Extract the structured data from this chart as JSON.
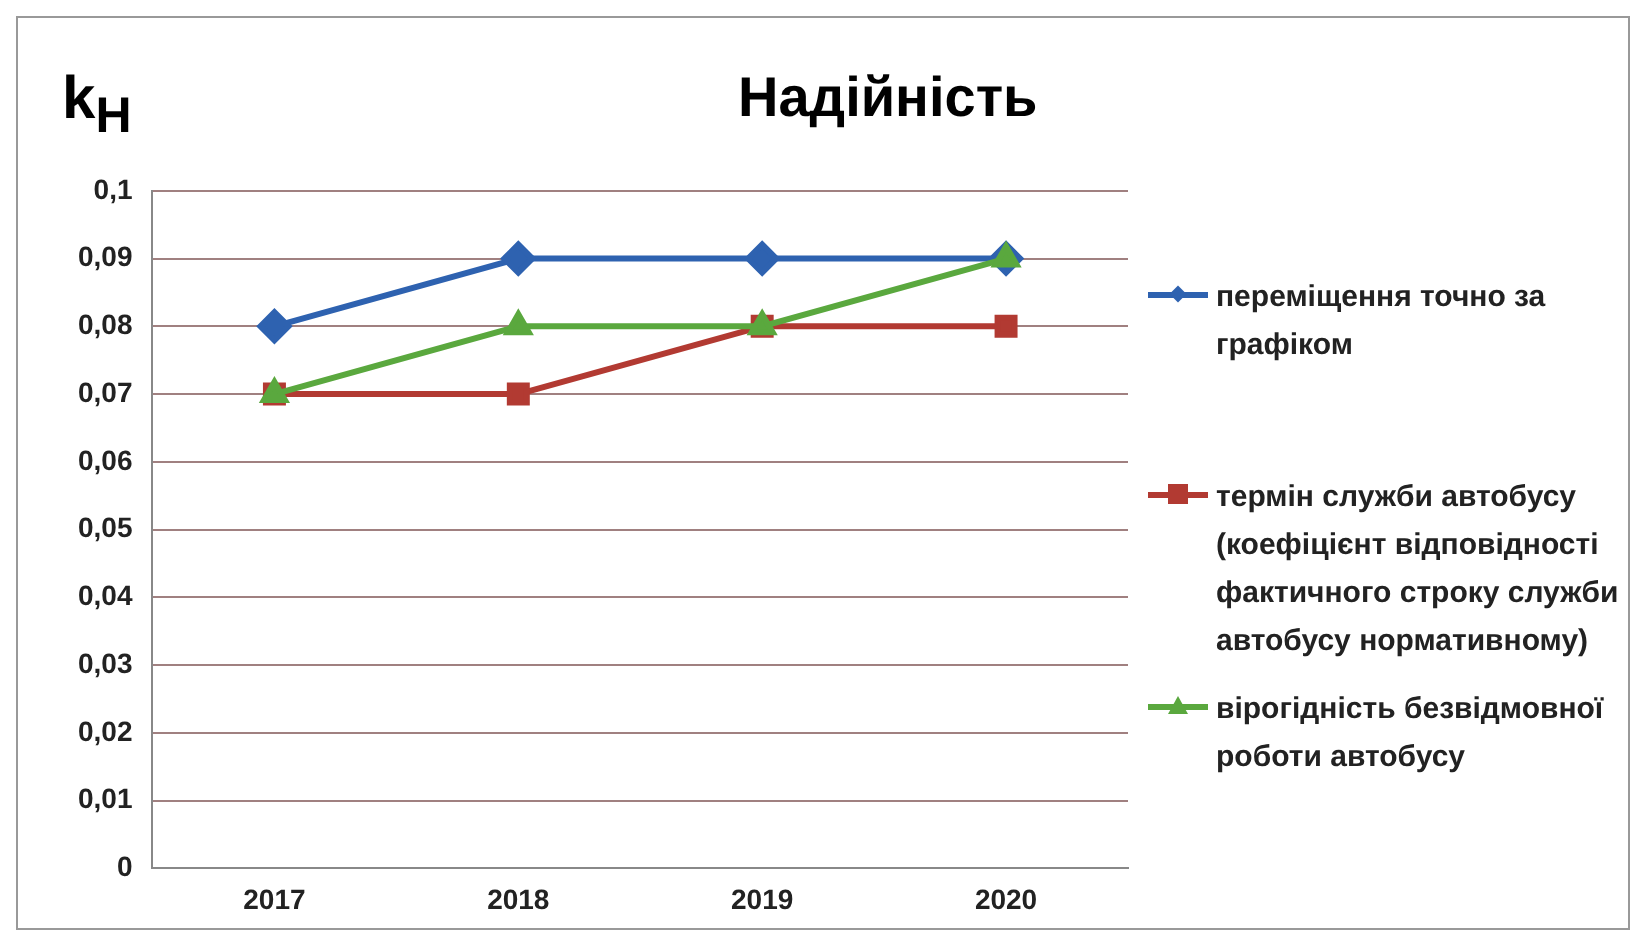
{
  "chart_data": {
    "type": "line",
    "title": "Надійність",
    "ylabel": "k$_{Н}$",
    "categories": [
      "2017",
      "2018",
      "2019",
      "2020"
    ],
    "series": [
      {
        "name": "переміщення точно за графіком",
        "color": "#2e62b0",
        "values": [
          0.08,
          0.09,
          0.09,
          0.09
        ],
        "marker": "diamond"
      },
      {
        "name": "термін служби автобусу (коефіцієнт відповідності фактичного строку служби автобусу нормативному)",
        "color": "#b23a32",
        "values": [
          0.07,
          0.07,
          0.08,
          0.08
        ],
        "marker": "square"
      },
      {
        "name": "вірогідність безвідмовної роботи автобусу",
        "color": "#5aa83e",
        "values": [
          0.07,
          0.08,
          0.08,
          0.09
        ],
        "marker": "triangle"
      }
    ],
    "ylim": [
      0,
      0.1
    ],
    "yticks": [
      0,
      {
        "value": 0.01,
        "label": "0,01"
      },
      {
        "value": 0.02,
        "label": "0,02"
      },
      {
        "value": 0.03,
        "label": "0,03"
      },
      {
        "value": 0.04,
        "label": "0,04"
      },
      {
        "value": 0.05,
        "label": "0,05"
      },
      {
        "value": 0.06,
        "label": "0,06"
      },
      {
        "value": 0.07,
        "label": "0,07"
      },
      {
        "value": 0.08,
        "label": "0,08"
      },
      {
        "value": 0.09,
        "label": "0,09"
      },
      {
        "value": 0.1,
        "label": "0,1"
      }
    ],
    "grid": "y",
    "legend": "right"
  }
}
